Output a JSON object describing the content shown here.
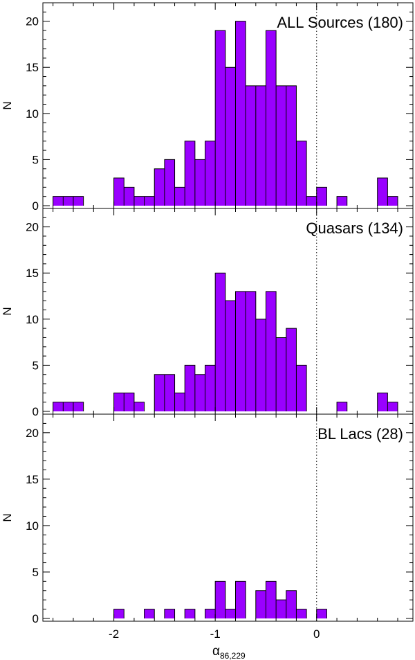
{
  "chart_data": {
    "type": "histogram-stack",
    "shared_x": {
      "label_main": "α",
      "label_sub": "86,229",
      "range": [
        -2.7,
        0.95
      ],
      "tick_values": [
        -2,
        -1,
        0
      ],
      "tick_labels": [
        "-2",
        "-1",
        "0"
      ],
      "minor_step": 0.2,
      "reference_line": 0
    },
    "bin_width": 0.1,
    "bar_color": "#9900ff",
    "panels": [
      {
        "title": "ALL Sources (180)",
        "ylabel": "N",
        "ylim": [
          0,
          22
        ],
        "ytick_values": [
          0,
          5,
          10,
          15,
          20
        ],
        "ytick_labels": [
          "0",
          "5",
          "10",
          "15",
          "20"
        ],
        "bins": [
          {
            "x0": -2.6,
            "n": 1
          },
          {
            "x0": -2.5,
            "n": 1
          },
          {
            "x0": -2.4,
            "n": 1
          },
          {
            "x0": -2.0,
            "n": 3
          },
          {
            "x0": -1.9,
            "n": 2
          },
          {
            "x0": -1.8,
            "n": 1
          },
          {
            "x0": -1.7,
            "n": 1
          },
          {
            "x0": -1.6,
            "n": 4
          },
          {
            "x0": -1.5,
            "n": 5
          },
          {
            "x0": -1.4,
            "n": 2
          },
          {
            "x0": -1.3,
            "n": 7
          },
          {
            "x0": -1.2,
            "n": 5
          },
          {
            "x0": -1.1,
            "n": 7
          },
          {
            "x0": -1.0,
            "n": 19
          },
          {
            "x0": -0.9,
            "n": 15
          },
          {
            "x0": -0.8,
            "n": 20
          },
          {
            "x0": -0.7,
            "n": 13
          },
          {
            "x0": -0.6,
            "n": 13
          },
          {
            "x0": -0.5,
            "n": 19
          },
          {
            "x0": -0.4,
            "n": 13
          },
          {
            "x0": -0.3,
            "n": 13
          },
          {
            "x0": -0.2,
            "n": 7
          },
          {
            "x0": -0.1,
            "n": 1
          },
          {
            "x0": 0.0,
            "n": 2
          },
          {
            "x0": 0.2,
            "n": 1
          },
          {
            "x0": 0.6,
            "n": 3
          },
          {
            "x0": 0.7,
            "n": 1
          }
        ]
      },
      {
        "title": "Quasars (134)",
        "ylabel": "N",
        "ylim": [
          0,
          22
        ],
        "ytick_values": [
          0,
          5,
          10,
          15,
          20
        ],
        "ytick_labels": [
          "0",
          "5",
          "10",
          "15",
          "20"
        ],
        "bins": [
          {
            "x0": -2.6,
            "n": 1
          },
          {
            "x0": -2.5,
            "n": 1
          },
          {
            "x0": -2.4,
            "n": 1
          },
          {
            "x0": -2.0,
            "n": 2
          },
          {
            "x0": -1.9,
            "n": 2
          },
          {
            "x0": -1.8,
            "n": 1
          },
          {
            "x0": -1.6,
            "n": 4
          },
          {
            "x0": -1.5,
            "n": 4
          },
          {
            "x0": -1.4,
            "n": 2
          },
          {
            "x0": -1.3,
            "n": 5
          },
          {
            "x0": -1.2,
            "n": 4
          },
          {
            "x0": -1.1,
            "n": 5
          },
          {
            "x0": -1.0,
            "n": 15
          },
          {
            "x0": -0.9,
            "n": 12
          },
          {
            "x0": -0.8,
            "n": 13
          },
          {
            "x0": -0.7,
            "n": 13
          },
          {
            "x0": -0.6,
            "n": 10
          },
          {
            "x0": -0.5,
            "n": 13
          },
          {
            "x0": -0.4,
            "n": 8
          },
          {
            "x0": -0.3,
            "n": 9
          },
          {
            "x0": -0.2,
            "n": 5
          },
          {
            "x0": 0.2,
            "n": 1
          },
          {
            "x0": 0.6,
            "n": 2
          },
          {
            "x0": 0.7,
            "n": 1
          }
        ]
      },
      {
        "title": "BL Lacs (28)",
        "ylabel": "N",
        "ylim": [
          0,
          22
        ],
        "ytick_values": [
          0,
          5,
          10,
          15,
          20
        ],
        "ytick_labels": [
          "0",
          "5",
          "10",
          "15",
          "20"
        ],
        "bins": [
          {
            "x0": -2.0,
            "n": 1
          },
          {
            "x0": -1.7,
            "n": 1
          },
          {
            "x0": -1.5,
            "n": 1
          },
          {
            "x0": -1.3,
            "n": 1
          },
          {
            "x0": -1.1,
            "n": 1
          },
          {
            "x0": -1.0,
            "n": 4
          },
          {
            "x0": -0.9,
            "n": 1
          },
          {
            "x0": -0.8,
            "n": 4
          },
          {
            "x0": -0.6,
            "n": 3
          },
          {
            "x0": -0.5,
            "n": 4
          },
          {
            "x0": -0.4,
            "n": 2
          },
          {
            "x0": -0.3,
            "n": 3
          },
          {
            "x0": -0.2,
            "n": 1
          },
          {
            "x0": 0.0,
            "n": 1
          }
        ]
      }
    ]
  }
}
